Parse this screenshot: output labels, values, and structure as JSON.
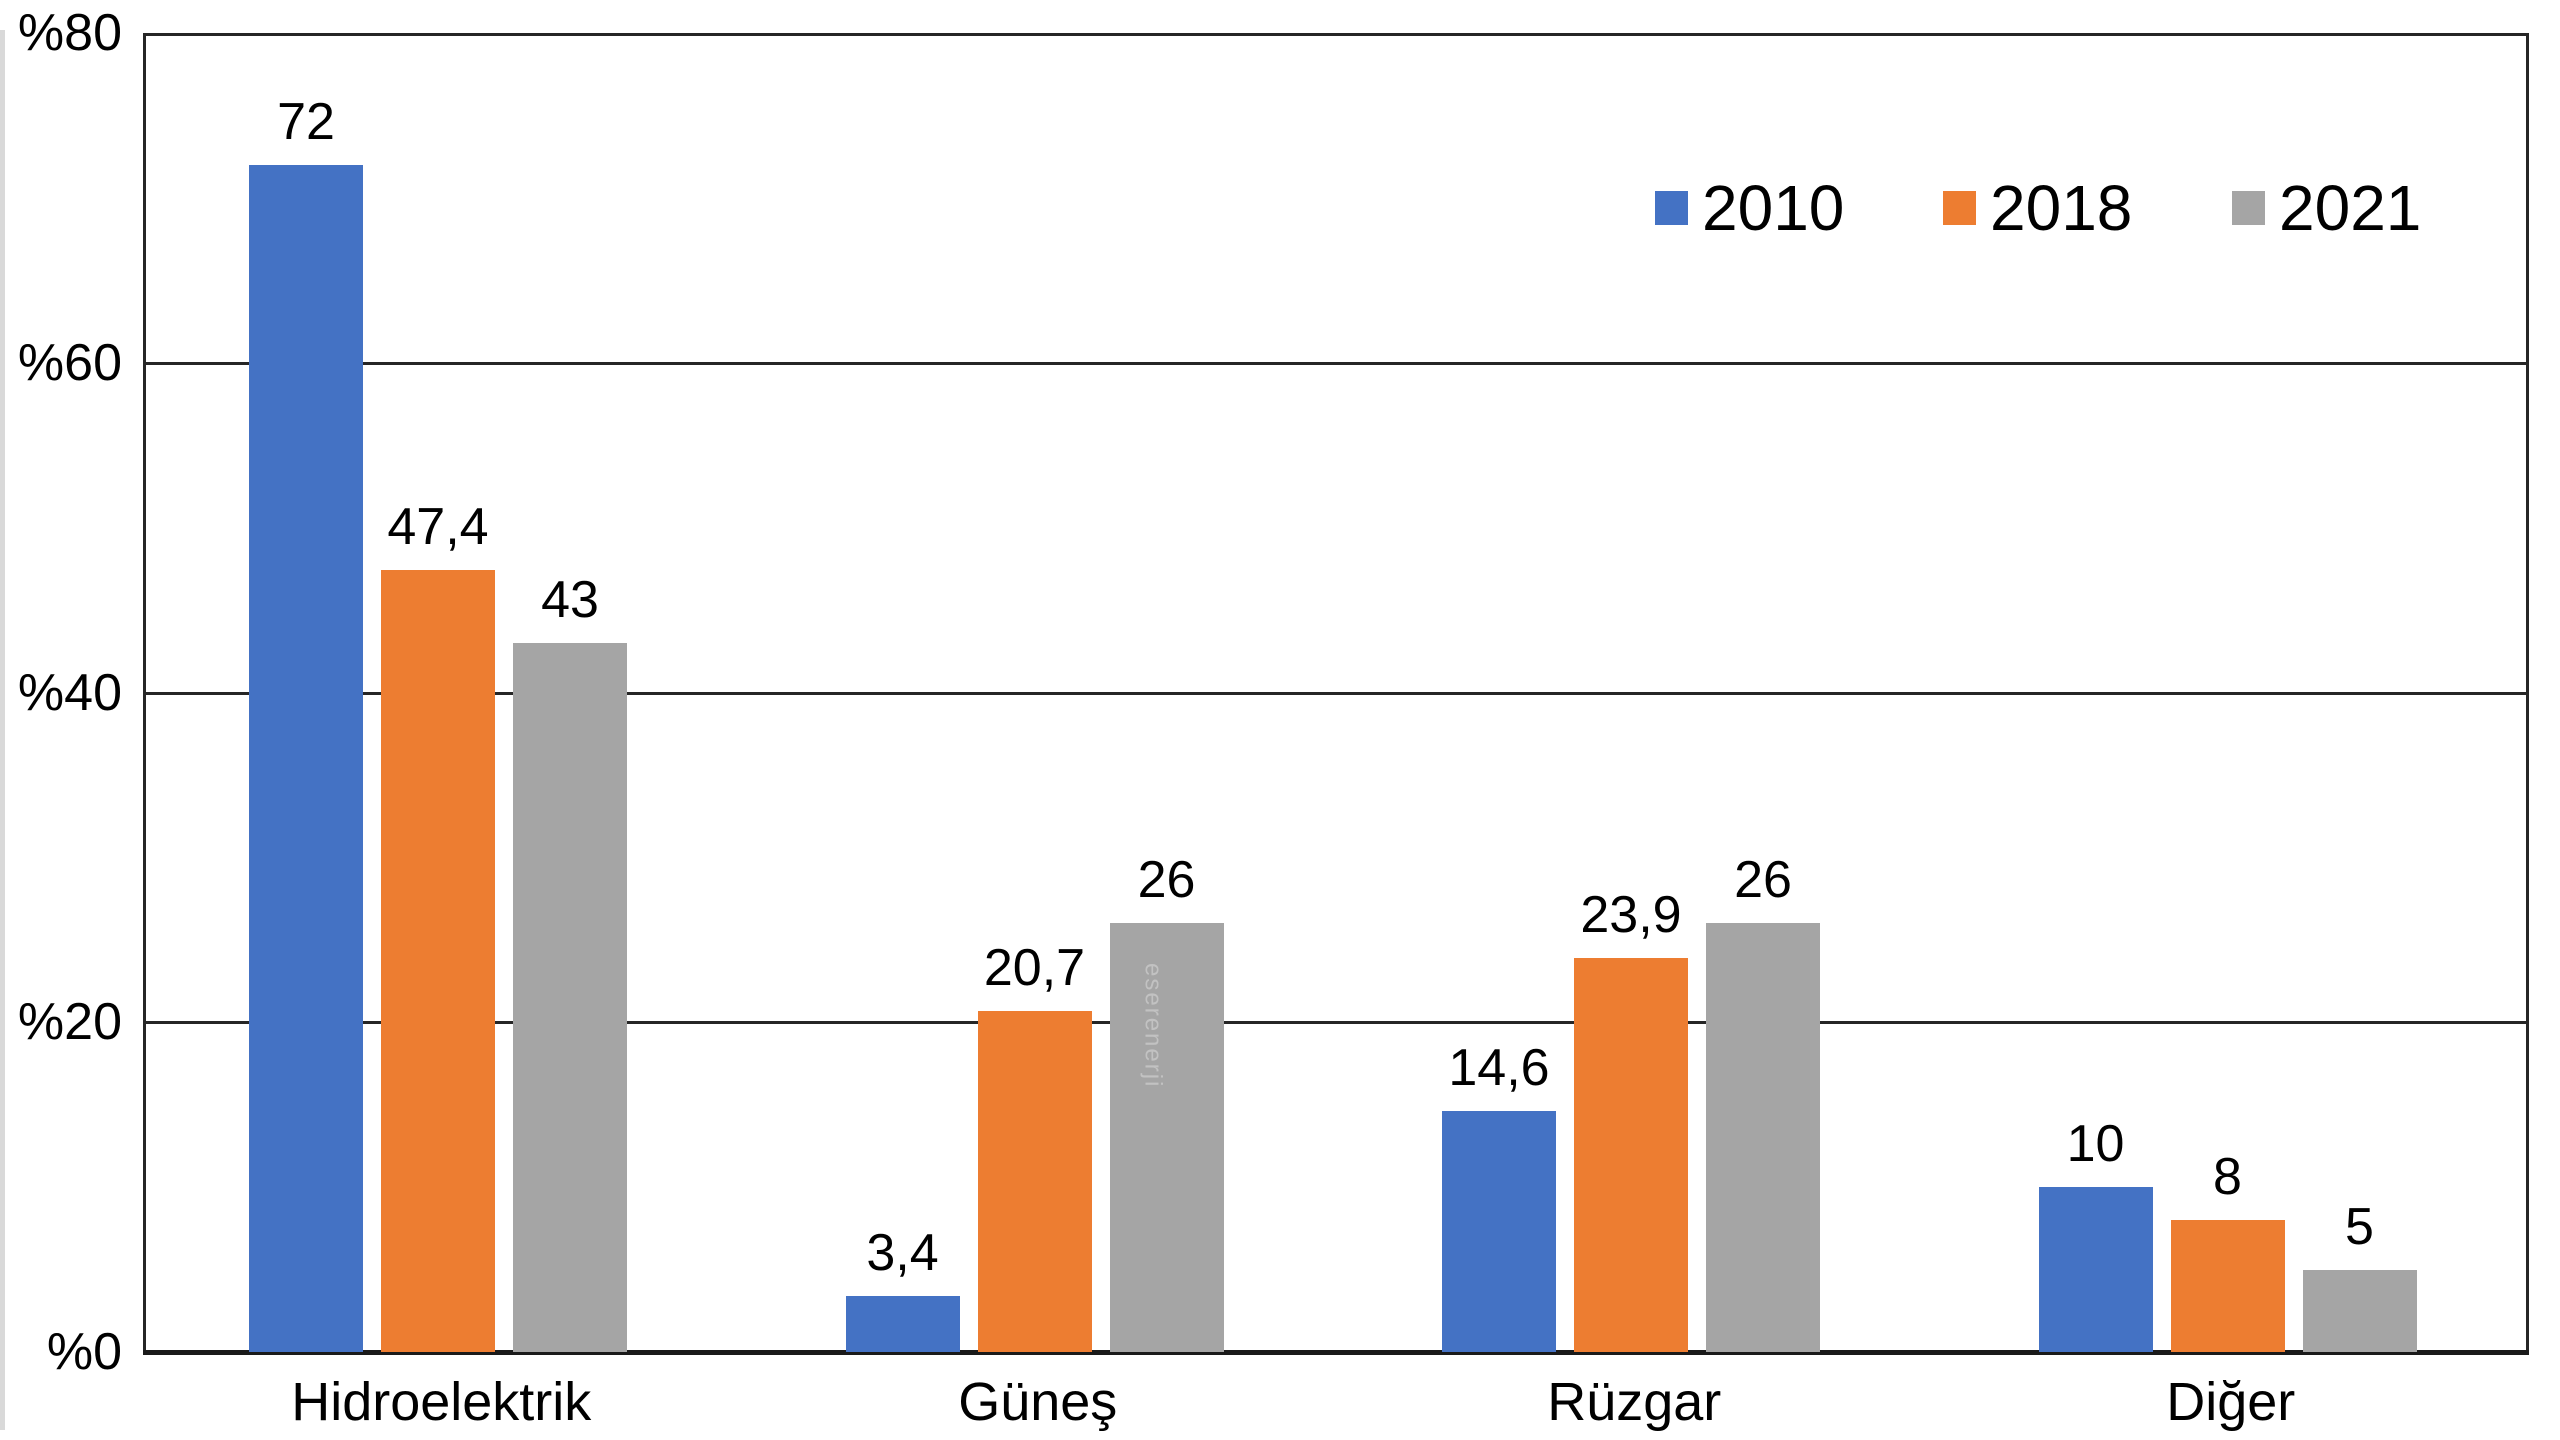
{
  "chart_data": {
    "type": "bar",
    "title": "",
    "categories": [
      "Hidroelektrik",
      "Güneş",
      "Rüzgar",
      "Diğer"
    ],
    "series": [
      {
        "name": "2010",
        "color": "#4472C4",
        "values": [
          72,
          3.4,
          14.6,
          10
        ],
        "value_labels": [
          "72",
          "3,4",
          "14,6",
          "10"
        ]
      },
      {
        "name": "2018",
        "color": "#ED7D31",
        "values": [
          47.4,
          20.7,
          23.9,
          8
        ],
        "value_labels": [
          "47,4",
          "20,7",
          "23,9",
          "8"
        ]
      },
      {
        "name": "2021",
        "color": "#A5A5A5",
        "values": [
          43,
          26,
          26,
          5
        ],
        "value_labels": [
          "43",
          "26",
          "26",
          "5"
        ]
      }
    ],
    "y_axis": {
      "min": 0,
      "max": 80,
      "tick_step": 20,
      "tick_labels": [
        "%80",
        "%60",
        "%40",
        "%20",
        "%0"
      ]
    },
    "legend": {
      "position": "top-right",
      "entries": [
        {
          "label": "2010",
          "color": "#4472C4"
        },
        {
          "label": "2018",
          "color": "#ED7D31"
        },
        {
          "label": "2021",
          "color": "#A5A5A5"
        }
      ]
    },
    "grid": true,
    "watermark": {
      "text": "eserenerji"
    }
  },
  "colors": {
    "axis": "#262626",
    "text": "#000000",
    "background": "#FFFFFF"
  }
}
